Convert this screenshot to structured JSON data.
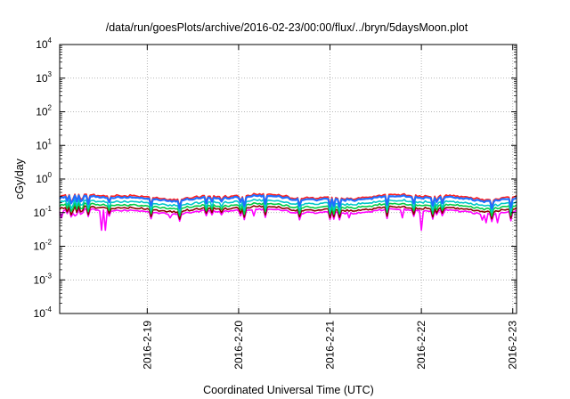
{
  "chart_data": {
    "type": "line",
    "title": "/data/run/goesPlots/archive/2016-02-23/00:00/flux/../bryn/5daysMoon.plot",
    "xlabel": "Coordinated Universal Time (UTC)",
    "ylabel": "cGy/day",
    "y_scale": "log",
    "ylim": [
      0.0001,
      10000
    ],
    "xlim": [
      "2016-02-18 01:00",
      "2016-02-23 01:00"
    ],
    "grid": true,
    "legend": "none",
    "y_ticks": [
      {
        "base": "10",
        "exp": "-4",
        "value": 0.0001
      },
      {
        "base": "10",
        "exp": "-3",
        "value": 0.001
      },
      {
        "base": "10",
        "exp": "-2",
        "value": 0.01
      },
      {
        "base": "10",
        "exp": "-1",
        "value": 0.1
      },
      {
        "base": "10",
        "exp": "0",
        "value": 1
      },
      {
        "base": "10",
        "exp": "1",
        "value": 10
      },
      {
        "base": "10",
        "exp": "2",
        "value": 100
      },
      {
        "base": "10",
        "exp": "3",
        "value": 1000
      },
      {
        "base": "10",
        "exp": "4",
        "value": 10000
      }
    ],
    "x_ticks": [
      {
        "label": "2016-2-19",
        "value": "2016-02-19 00:00"
      },
      {
        "label": "2016-2-20",
        "value": "2016-02-20 00:00"
      },
      {
        "label": "2016-2-21",
        "value": "2016-02-21 00:00"
      },
      {
        "label": "2016-2-22",
        "value": "2016-02-22 00:00"
      },
      {
        "label": "2016-2-23",
        "value": "2016-02-23 00:00"
      }
    ],
    "series": [
      {
        "color": "#ff00ff",
        "typical": 0.11,
        "dips": [
          {
            "x": "2016-02-18 01:30",
            "y": 0.07
          },
          {
            "x": "2016-02-18 05:00",
            "y": 0.08
          },
          {
            "x": "2016-02-18 12:00",
            "y": 0.03
          },
          {
            "x": "2016-02-18 13:00",
            "y": 0.03
          },
          {
            "x": "2016-02-19 06:00",
            "y": 0.07
          },
          {
            "x": "2016-02-20 04:00",
            "y": 0.08
          },
          {
            "x": "2016-02-21 05:00",
            "y": 0.07
          },
          {
            "x": "2016-02-21 19:00",
            "y": 0.07
          },
          {
            "x": "2016-02-22 00:00",
            "y": 0.03
          },
          {
            "x": "2016-02-22 16:00",
            "y": 0.06
          },
          {
            "x": "2016-02-22 17:00",
            "y": 0.05
          },
          {
            "x": "2016-02-22 20:00",
            "y": 0.05
          }
        ]
      },
      {
        "color": "#8b0000",
        "typical": 0.13
      },
      {
        "color": "#00cc44",
        "typical": 0.16
      },
      {
        "color": "#00c8c8",
        "typical": 0.2
      },
      {
        "color": "#ff2020",
        "typical": 0.3
      },
      {
        "color": "#1f6fff",
        "typical": 0.27
      }
    ]
  }
}
